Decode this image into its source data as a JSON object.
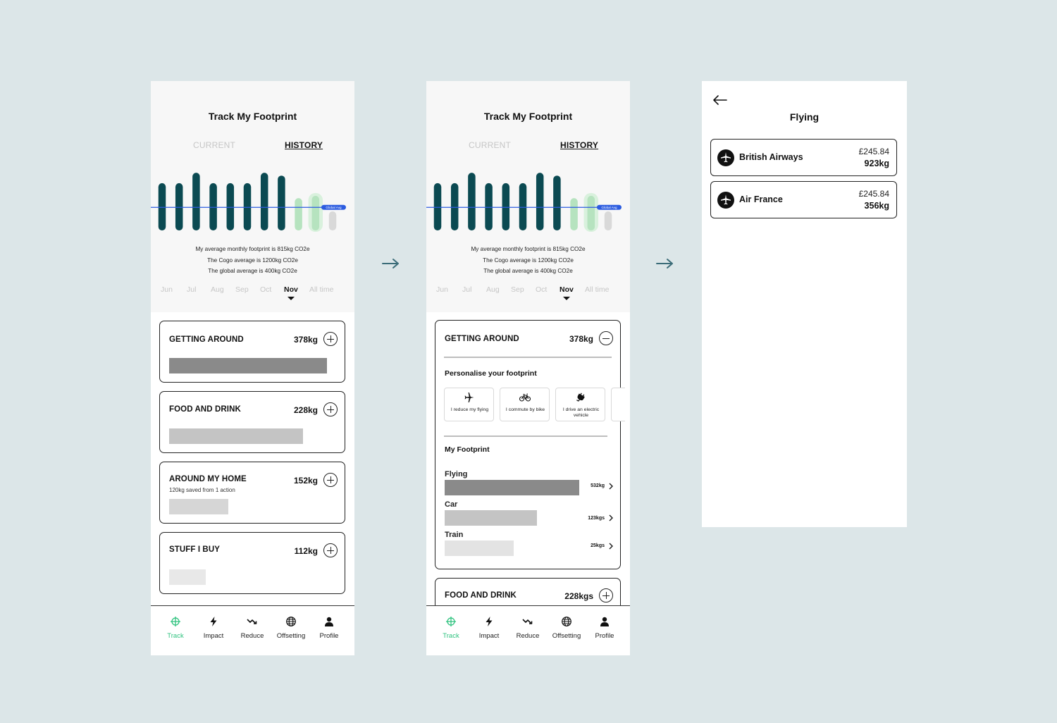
{
  "screens": {
    "track": {
      "title": "Track My Footprint",
      "tabs": {
        "current": "CURRENT",
        "history": "HISTORY"
      },
      "chart_data": {
        "type": "bar",
        "title": "",
        "categories": [
          "",
          "",
          "",
          "",
          "",
          "",
          "",
          "",
          "",
          "",
          ""
        ],
        "values": [
          820,
          820,
          1000,
          820,
          820,
          820,
          1000,
          950,
          560,
          600,
          330
        ],
        "ylim": [
          0,
          1100
        ],
        "reference_line": {
          "label": "Global Avg",
          "value": 400
        },
        "colors": {
          "past": "#0b4a52",
          "recent": "#b6e3bf",
          "latest": "#d9d9d9",
          "line": "#2c5ce0"
        }
      },
      "stats": {
        "line1": "My average monthly footprint is 815kg CO2e",
        "line2": "The Cogo average is 1200kg CO2e",
        "line3": "The global average is 400kg CO2e"
      },
      "months": [
        "Jun",
        "Jul",
        "Aug",
        "Sep",
        "Oct",
        "Nov",
        "All time"
      ],
      "selected_month": "Nov",
      "categories": [
        {
          "title": "GETTING AROUND",
          "value": "378kg",
          "fill": 0.85
        },
        {
          "title": "FOOD AND DRINK",
          "value": "228kg",
          "fill": 0.72
        },
        {
          "title": "AROUND MY HOME",
          "value": "152kg",
          "subtitle": "120kg saved from 1 action",
          "fill": 0.32
        },
        {
          "title": "STUFF I BUY",
          "value": "112kg",
          "fill": 0.2
        }
      ]
    },
    "expanded": {
      "getting_around": {
        "title": "GETTING AROUND",
        "value": "378kg"
      },
      "personalise_heading": "Personalise your footprint",
      "actions": [
        {
          "icon": "plane-icon",
          "label": "I reduce my flying"
        },
        {
          "icon": "bike-icon",
          "label": "I commute by bike"
        },
        {
          "icon": "plug-icon",
          "label": "I drive an electric vehicle"
        }
      ],
      "my_footprint_heading": "My Footprint",
      "breakdown": [
        {
          "label": "Flying",
          "value": "532kg",
          "fill": 0.72
        },
        {
          "label": "Car",
          "value": "123kgs",
          "fill": 0.5
        },
        {
          "label": "Train",
          "value": "25kgs",
          "fill": 0.37
        }
      ],
      "food_and_drink": {
        "title": "FOOD AND DRINK",
        "value": "228kgs"
      }
    },
    "flying": {
      "title": "Flying",
      "airlines": [
        {
          "name": "British Airways",
          "price": "£245.84",
          "weight": "923kg"
        },
        {
          "name": "Air France",
          "price": "£245.84",
          "weight": "356kg"
        }
      ]
    }
  },
  "nav": [
    "Track",
    "Impact",
    "Reduce",
    "Offsetting",
    "Profile"
  ],
  "colors": {
    "accent_green": "#2ec27e",
    "background": "#dce6e8",
    "arrow": "#3b6c78"
  }
}
